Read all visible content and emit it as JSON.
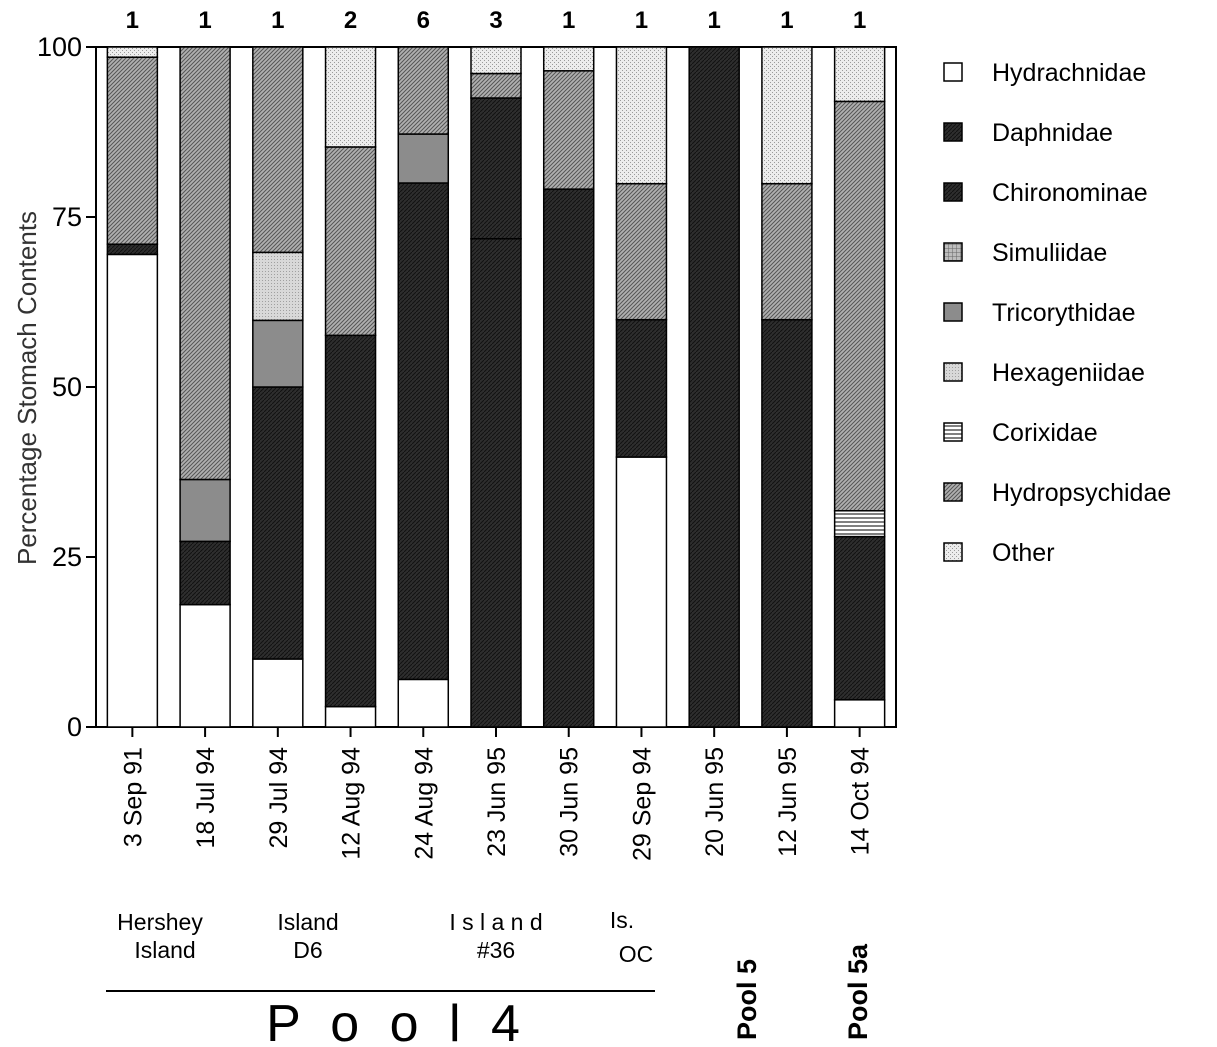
{
  "chart_data": {
    "type": "bar",
    "stacked": true,
    "ylabel": "Percentage Stomach Contents",
    "ylim": [
      0,
      100
    ],
    "yticks": [
      0,
      25,
      50,
      75,
      100
    ],
    "categories": [
      "3 Sep 91",
      "18 Jul 94",
      "29 Jul 94",
      "12 Aug 94",
      "24 Aug 94",
      "23 Jun 95",
      "30 Jun 95",
      "29 Sep 94",
      "20 Jun 95",
      "12 Jun 95",
      "14 Oct 94"
    ],
    "counts": [
      "1",
      "1",
      "1",
      "2",
      "6",
      "3",
      "1",
      "1",
      "1",
      "1",
      "1"
    ],
    "series": [
      {
        "name": "Hydrachnidae",
        "color": "#ffffff",
        "pattern": "white",
        "values": [
          69.5,
          18,
          10,
          3,
          7,
          0,
          0,
          39.7,
          0,
          0,
          4
        ]
      },
      {
        "name": "Daphnidae",
        "color": "#2a2a2a",
        "pattern": "dark",
        "values": [
          0,
          0,
          0,
          0,
          0,
          71.8,
          0,
          0,
          0,
          0,
          0
        ]
      },
      {
        "name": "Chironominae",
        "color": "#2a2a2a",
        "pattern": "dark",
        "values": [
          1.5,
          9.3,
          40,
          54.6,
          73,
          20.7,
          79.1,
          20.2,
          100,
          59.9,
          24
        ]
      },
      {
        "name": "Simuliidae",
        "color": "#a8a8a8",
        "pattern": "grid",
        "values": [
          0,
          0,
          0,
          0,
          0,
          0,
          0,
          0,
          0,
          0,
          0
        ]
      },
      {
        "name": "Tricorythidae",
        "color": "#8a8a8a",
        "pattern": "midgray",
        "values": [
          0,
          9.1,
          9.8,
          0,
          7.2,
          0,
          0,
          0,
          0,
          0,
          0
        ]
      },
      {
        "name": "Hexageniidae",
        "color": "#d2d2d2",
        "pattern": "lightgray",
        "values": [
          0,
          0,
          10,
          0,
          0,
          0,
          0,
          0,
          0,
          0,
          0
        ]
      },
      {
        "name": "Corixidae",
        "color": "#ffffff",
        "pattern": "hlines",
        "values": [
          0,
          0,
          0,
          0,
          0,
          0,
          0,
          0,
          0,
          0,
          3.8
        ]
      },
      {
        "name": "Hydropsychidae",
        "color": "#9a9a9a",
        "pattern": "diag",
        "values": [
          27.5,
          63.6,
          30.2,
          27.7,
          12.8,
          3.6,
          17.4,
          20,
          0,
          20,
          60.2
        ]
      },
      {
        "name": "Other",
        "color": "#e4e4e4",
        "pattern": "speckle",
        "values": [
          1.5,
          0,
          0,
          14.7,
          0,
          3.9,
          3.5,
          20.1,
          0,
          20.1,
          8
        ]
      }
    ],
    "legend_position": "right",
    "grid": false
  },
  "site_labels": {
    "hershey": [
      "Hershey",
      "Island"
    ],
    "d6": [
      "Island",
      "D6"
    ],
    "island36": [
      "I s l a n d",
      "#36"
    ],
    "isoc": [
      "Is.",
      "OC"
    ]
  },
  "pool_labels": {
    "pool4": "P o o l   4",
    "pool5": "Pool 5",
    "pool5a": "Pool 5a"
  }
}
